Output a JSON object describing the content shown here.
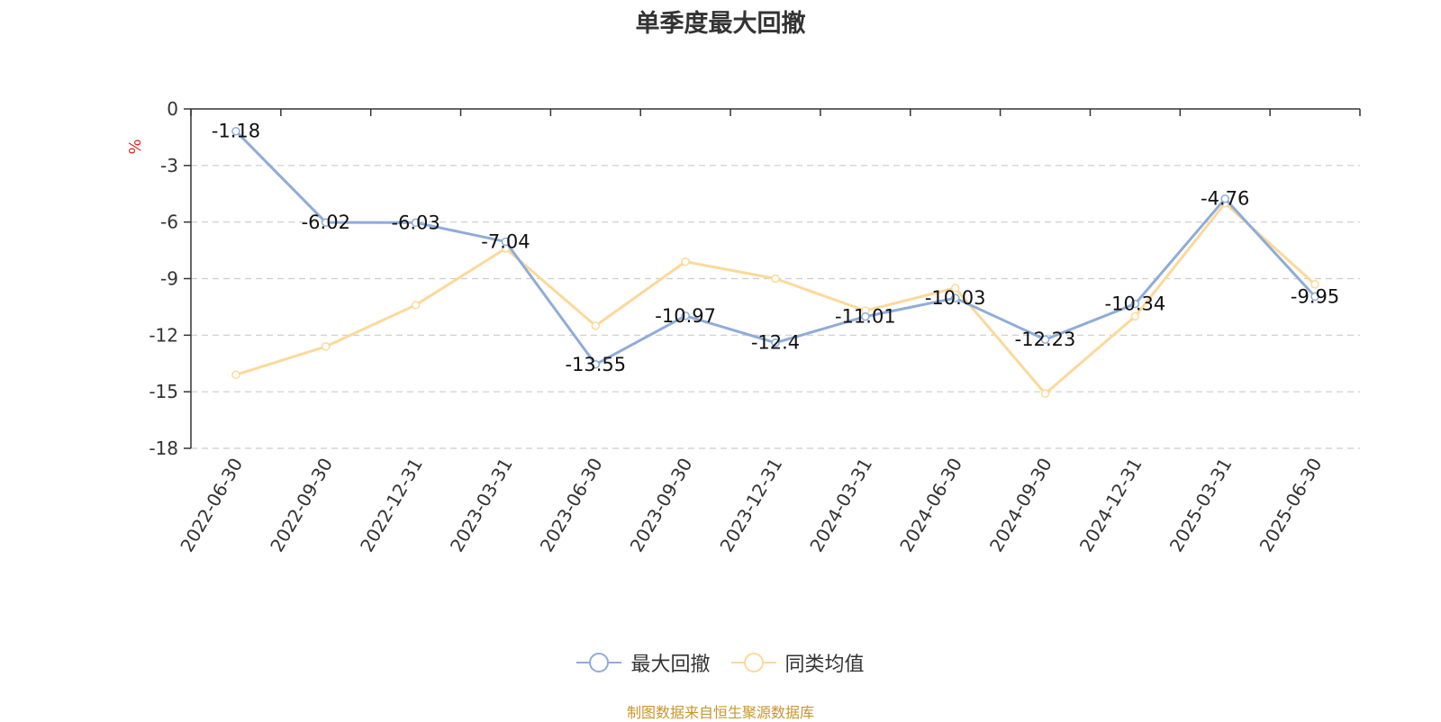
{
  "title": "单季度最大回撤",
  "source": "制图数据来自恒生聚源数据库",
  "colors": {
    "series1": "#8facd8",
    "series2": "#fcd99a",
    "axis": "#333333",
    "grid": "#cccccc",
    "unit": "#e8272a"
  },
  "chart_data": {
    "type": "line",
    "x": [
      "2022-06-30",
      "2022-09-30",
      "2022-12-31",
      "2023-03-31",
      "2023-06-30",
      "2023-09-30",
      "2023-12-31",
      "2024-03-31",
      "2024-06-30",
      "2024-09-30",
      "2024-12-31",
      "2025-03-31",
      "2025-06-30"
    ],
    "series": [
      {
        "name": "最大回撤",
        "values": [
          -1.18,
          -6.02,
          -6.03,
          -7.04,
          -13.55,
          -10.97,
          -12.4,
          -11.01,
          -10.03,
          -12.23,
          -10.34,
          -4.76,
          -9.95
        ],
        "data_labels": true
      },
      {
        "name": "同类均值",
        "values": [
          -14.1,
          -12.6,
          -10.4,
          -7.4,
          -11.5,
          -8.1,
          -9.0,
          -10.7,
          -9.5,
          -15.1,
          -11.0,
          -5.0,
          -9.3
        ],
        "data_labels": false
      }
    ],
    "ylabel": "%",
    "ylim": [
      -18,
      0
    ],
    "yticks": [
      0,
      -3,
      -6,
      -9,
      -12,
      -15,
      -18
    ],
    "grid": true,
    "legend": "bottom-center"
  }
}
